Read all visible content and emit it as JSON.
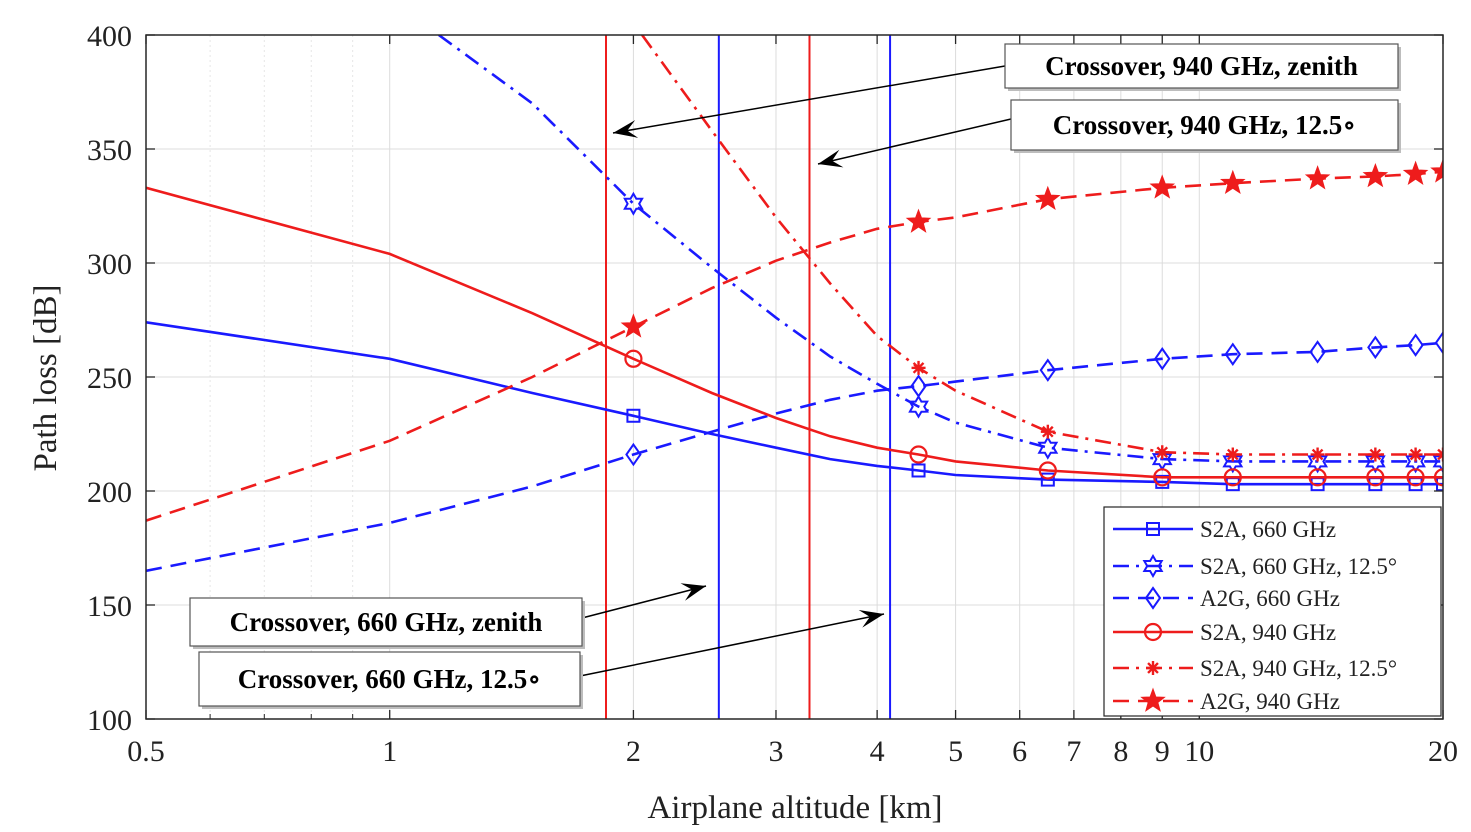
{
  "chart_data": {
    "type": "line",
    "title": "",
    "xlabel": "Airplane altitude [km]",
    "ylabel": "Path loss [dB]",
    "xscale": "log",
    "xlim": [
      0.5,
      20
    ],
    "ylim": [
      100,
      400
    ],
    "xticks": [
      0.5,
      1,
      2,
      3,
      4,
      5,
      6,
      7,
      8,
      9,
      10,
      20
    ],
    "xtick_labels": [
      "0.5",
      "1",
      "2",
      "3",
      "4",
      "5",
      "6",
      "7",
      "8",
      "9",
      "10",
      "20"
    ],
    "yticks": [
      100,
      150,
      200,
      250,
      300,
      350,
      400
    ],
    "ytick_labels": [
      "100",
      "150",
      "200",
      "250",
      "300",
      "350",
      "400"
    ],
    "grid": true,
    "legend_position": "bottom-right",
    "series": [
      {
        "name": "S2A, 660 GHz",
        "color": "#1a1aff",
        "dash": "solid",
        "marker": "square",
        "x": [
          0.5,
          1,
          1.5,
          2,
          2.5,
          3,
          3.5,
          4,
          4.5,
          5,
          6.5,
          9,
          11,
          14,
          16.5,
          18.5,
          20
        ],
        "y": [
          274,
          258,
          243,
          233,
          225,
          219,
          214,
          211,
          209,
          207,
          205,
          204,
          203,
          203,
          203,
          203,
          203
        ],
        "marker_x": [
          2,
          4.5,
          6.5,
          9,
          11,
          14,
          16.5,
          18.5,
          20
        ]
      },
      {
        "name": "S2A, 660 GHz, 12.5°",
        "color": "#1a1aff",
        "dash": "dashdot",
        "marker": "hexagram",
        "x": [
          1.15,
          1.5,
          2,
          2.5,
          3,
          3.5,
          4,
          4.5,
          5,
          6.5,
          9,
          11,
          14,
          16.5,
          18.5,
          20
        ],
        "y": [
          400,
          370,
          326,
          298,
          276,
          259,
          247,
          237,
          230,
          219,
          214,
          213,
          213,
          213,
          213,
          213
        ],
        "marker_x": [
          2,
          4.5,
          6.5,
          9,
          11,
          14,
          16.5,
          18.5,
          20
        ]
      },
      {
        "name": "A2G, 660 GHz",
        "color": "#1a1aff",
        "dash": "dashed",
        "marker": "diamond",
        "x": [
          0.5,
          1,
          1.5,
          2,
          2.5,
          3,
          3.5,
          4,
          4.5,
          5,
          6.5,
          9,
          11,
          14,
          16.5,
          18.5,
          20
        ],
        "y": [
          165,
          186,
          202,
          216,
          226,
          234,
          240,
          244,
          246,
          248,
          253,
          258,
          260,
          261,
          263,
          264,
          265
        ],
        "marker_x": [
          2,
          4.5,
          6.5,
          9,
          11,
          14,
          16.5,
          18.5,
          20
        ]
      },
      {
        "name": "S2A, 940 GHz",
        "color": "#ee1c1c",
        "dash": "solid",
        "marker": "circle",
        "x": [
          0.5,
          1,
          1.5,
          2,
          2.5,
          3,
          3.5,
          4,
          4.5,
          5,
          6.5,
          9,
          11,
          14,
          16.5,
          18.5,
          20
        ],
        "y": [
          333,
          304,
          278,
          258,
          243,
          232,
          224,
          219,
          216,
          213,
          209,
          206,
          206,
          206,
          206,
          206,
          206
        ],
        "marker_x": [
          2,
          4.5,
          6.5,
          9,
          11,
          14,
          16.5,
          18.5,
          20
        ]
      },
      {
        "name": "S2A, 940 GHz, 12.5°",
        "color": "#ee1c1c",
        "dash": "dashdot",
        "marker": "asterisk",
        "x": [
          2.05,
          2.5,
          3,
          3.5,
          4,
          4.5,
          5,
          6.5,
          9,
          11,
          14,
          16.5,
          18.5,
          20
        ],
        "y": [
          400,
          358,
          320,
          291,
          268,
          254,
          244,
          226,
          217,
          216,
          216,
          216,
          216,
          216
        ],
        "marker_x": [
          4.5,
          6.5,
          9,
          11,
          14,
          16.5,
          18.5,
          20
        ]
      },
      {
        "name": "A2G, 940 GHz",
        "color": "#ee1c1c",
        "dash": "dashed",
        "marker": "pentagram",
        "x": [
          0.5,
          1,
          1.5,
          2,
          2.5,
          3,
          3.5,
          4,
          4.5,
          5,
          6.5,
          9,
          11,
          14,
          16.5,
          18.5,
          20
        ],
        "y": [
          187,
          222,
          250,
          272,
          289,
          301,
          309,
          315,
          318,
          320,
          328,
          333,
          335,
          337,
          338,
          339,
          340
        ],
        "marker_x": [
          2,
          4.5,
          6.5,
          9,
          11,
          14,
          16.5,
          18.5,
          20
        ]
      }
    ],
    "vertical_lines": [
      {
        "x": 1.85,
        "color": "#ee1c1c"
      },
      {
        "x": 2.55,
        "color": "#1a1aff"
      },
      {
        "x": 3.3,
        "color": "#ee1c1c"
      },
      {
        "x": 4.15,
        "color": "#1a1aff"
      }
    ],
    "annotations": [
      {
        "text": "Crossover, 940 GHz, zenith",
        "target_x": 1.85,
        "target_y": 357
      },
      {
        "text": "Crossover, 940 GHz, 12.5∘",
        "target_x": 3.3,
        "target_y": 344
      },
      {
        "text": "Crossover, 660 GHz, zenith",
        "target_x": 2.55,
        "target_y": 158
      },
      {
        "text": "Crossover, 660 GHz, 12.5∘",
        "target_x": 4.15,
        "target_y": 144
      }
    ]
  }
}
